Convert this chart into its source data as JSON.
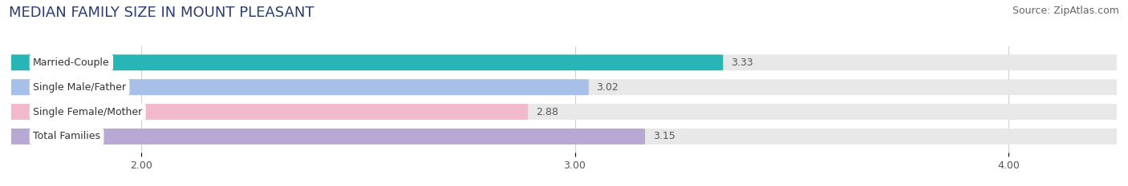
{
  "title": "MEDIAN FAMILY SIZE IN MOUNT PLEASANT",
  "source": "Source: ZipAtlas.com",
  "categories": [
    "Married-Couple",
    "Single Male/Father",
    "Single Female/Mother",
    "Total Families"
  ],
  "values": [
    3.33,
    3.02,
    2.88,
    3.15
  ],
  "bar_colors": [
    "#29b5b5",
    "#a8bfe8",
    "#f2b8cc",
    "#b8a8d4"
  ],
  "xlim": [
    1.7,
    4.25
  ],
  "xstart": 1.7,
  "xticks": [
    2.0,
    3.0,
    4.0
  ],
  "xtick_labels": [
    "2.00",
    "3.00",
    "4.00"
  ],
  "bar_height": 0.62,
  "background_color": "#ffffff",
  "bar_bg_color": "#e8e8e8",
  "title_fontsize": 13,
  "source_fontsize": 9,
  "label_fontsize": 9,
  "value_fontsize": 9,
  "tick_fontsize": 9,
  "title_color": "#2c3e70",
  "source_color": "#666666",
  "label_color": "#333333",
  "value_color": "#555555",
  "grid_color": "#d0d0d0"
}
